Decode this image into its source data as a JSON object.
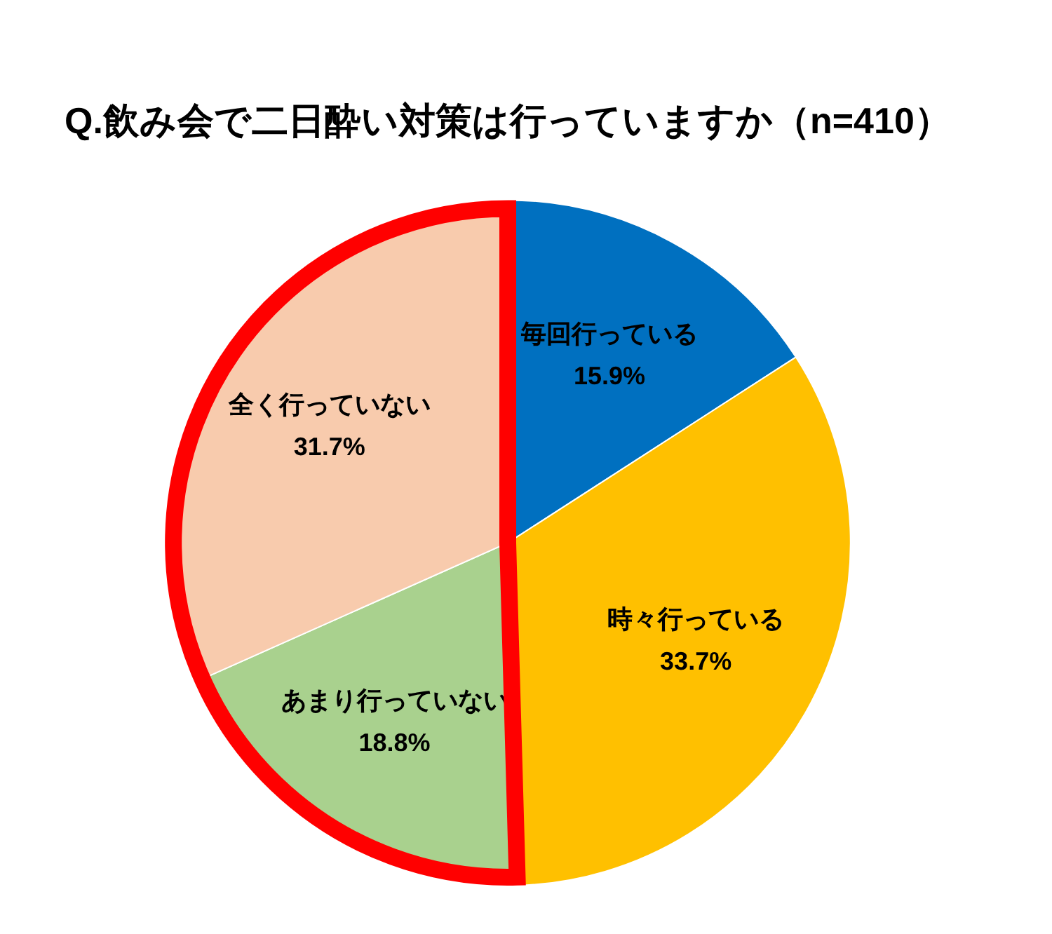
{
  "chart_data": {
    "type": "pie",
    "title": "Q.飲み会で二日酔い対策は行っていますか（n=410）",
    "categories": [
      "毎回行っている",
      "時々行っている",
      "あまり行っていない",
      "全く行っていない"
    ],
    "values": [
      15.9,
      33.7,
      18.8,
      31.7
    ],
    "colors": [
      "#0070c0",
      "#ffc000",
      "#a9d18e",
      "#f8cbad"
    ],
    "value_labels": [
      "15.9%",
      "33.7%",
      "18.8%",
      "31.7%"
    ]
  }
}
